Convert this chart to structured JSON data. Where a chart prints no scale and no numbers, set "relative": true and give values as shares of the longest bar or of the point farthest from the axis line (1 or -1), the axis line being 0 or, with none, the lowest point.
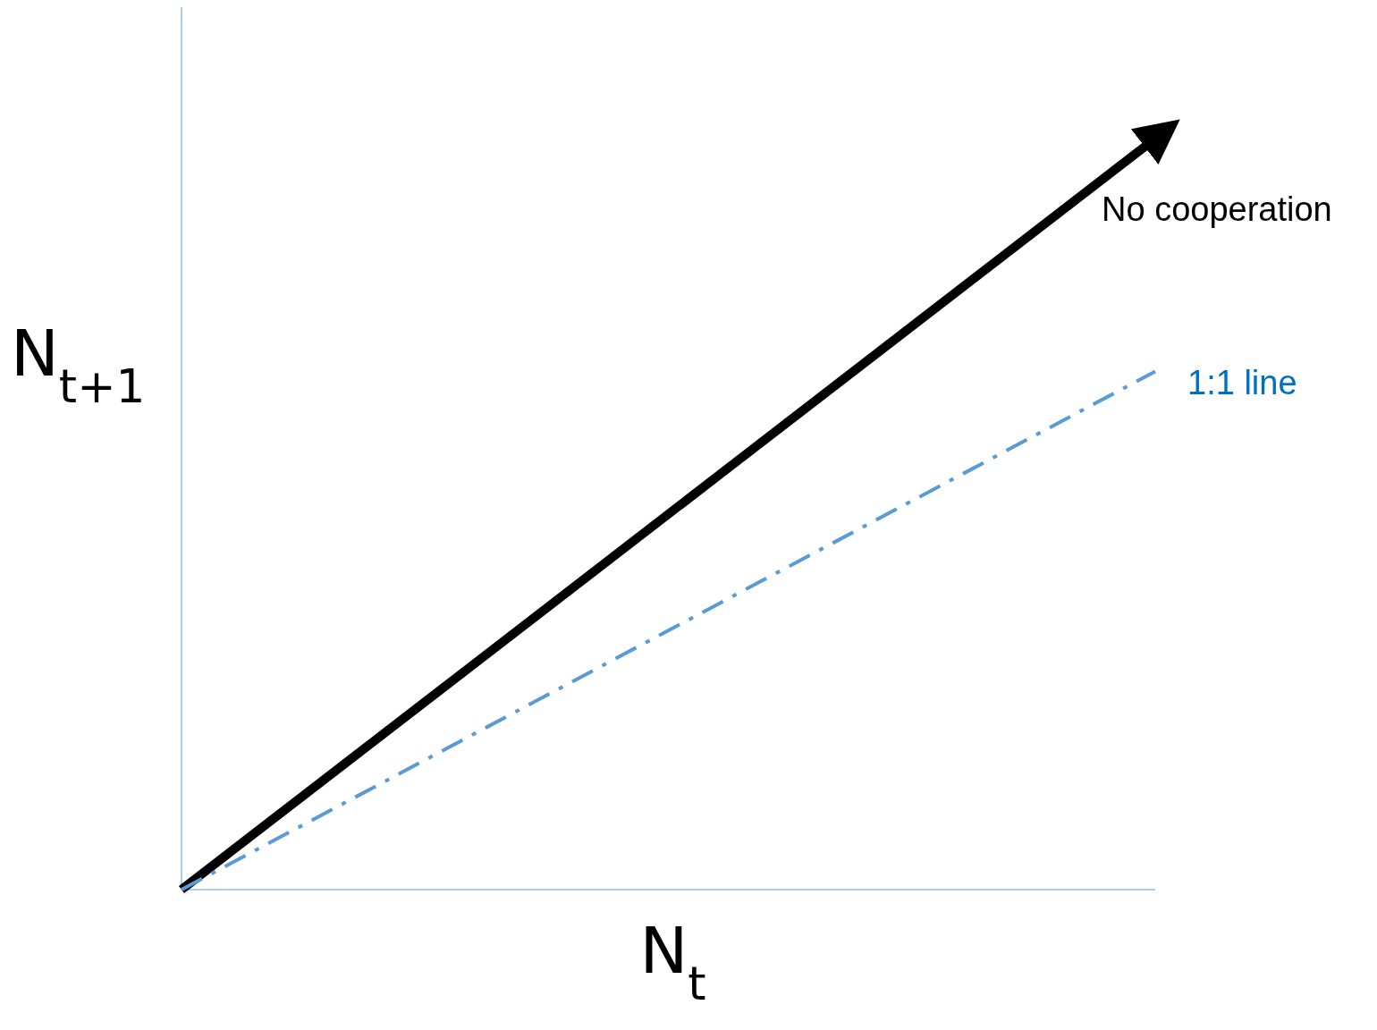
{
  "chart_data": {
    "type": "line",
    "relative": true,
    "xlabel": "N$_{t}$",
    "ylabel": "N$_{t+1}$",
    "categories": [
      null,
      null
    ],
    "series": [
      {
        "name": "No cooperation",
        "color": "#000000",
        "values": [
          0,
          1
        ],
        "line_style": "solid"
      },
      {
        "name": "1:1 line",
        "color": "#5b9bd5",
        "values": [
          0,
          0.69
        ],
        "line_style": "dashed"
      }
    ],
    "marker": "none"
  }
}
